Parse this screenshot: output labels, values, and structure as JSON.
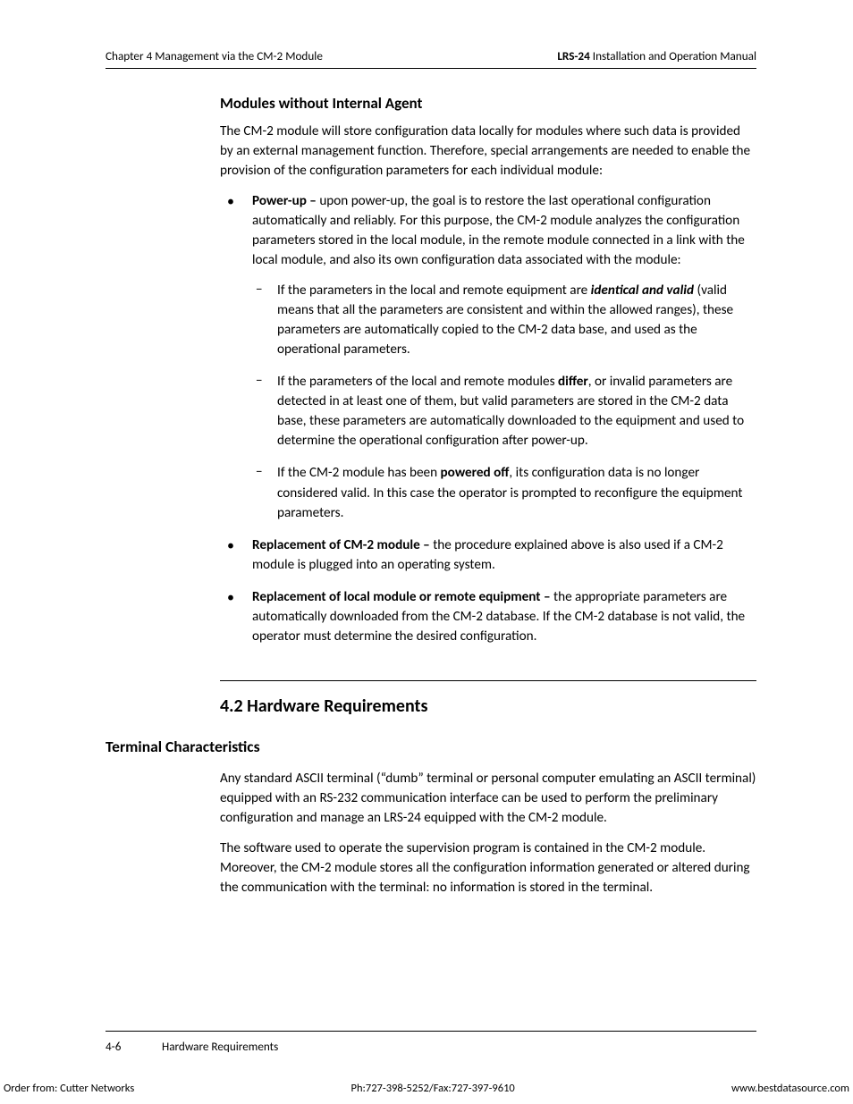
{
  "colors": {
    "text": "#000000",
    "background": "#ffffff",
    "rule": "#000000"
  },
  "typography": {
    "body_fontsize_pt": 11.4,
    "heading3_fontsize_pt": 12.8,
    "heading2_fontsize_pt": 15,
    "line_height": 1.45,
    "font_family": "Optima / humanist sans-serif"
  },
  "header": {
    "left": "Chapter 4  Management via the CM-2 Module",
    "right_bold": "LRS-24",
    "right_rest": " Installation and Operation Manual"
  },
  "section1": {
    "title": "Modules without Internal Agent",
    "intro": "The CM-2 module will store configuration data locally for modules where such data is provided by an external management function. Therefore, special arrangements are needed to enable the provision of the configuration parameters for each individual module:",
    "bullets": [
      {
        "lead": "Power-up – ",
        "text": "upon power-up, the goal is to restore the last operational configuration automatically and reliably. For this purpose, the CM-2 module analyzes the configuration parameters  stored in the local module, in the remote module connected in a link with the local module, and also its own configuration data associated with the module:",
        "sub": [
          {
            "pre": "If the parameters in the local and remote equipment are ",
            "em": "identical and valid",
            "post": " (valid means that all the parameters are consistent and within the allowed ranges), these parameters are automatically copied to the CM-2 data base, and used as the operational parameters."
          },
          {
            "pre": "If the parameters of the local and remote modules ",
            "em": "differ",
            "post": ", or invalid parameters are detected in at least one of them, but valid parameters are stored in the CM-2 data base, these parameters are automatically downloaded to the equipment and used to determine the operational configuration after power-up."
          },
          {
            "pre": "If the CM-2 module has been ",
            "em": "powered off",
            "post": ", its configuration data is no longer considered valid. In this case the operator is prompted to reconfigure the equipment parameters."
          }
        ]
      },
      {
        "lead": "Replacement of CM-2 module – ",
        "text": "the procedure explained above is also used if a CM-2 module is plugged into an operating system."
      },
      {
        "lead": "Replacement of local module or remote equipment – ",
        "text": "the appropriate parameters are automatically downloaded from the CM-2 database. If the CM-2 database is not valid, the operator must determine the desired configuration."
      }
    ]
  },
  "section2": {
    "number_title": "4.2  Hardware Requirements",
    "sidehead": "Terminal Characteristics",
    "para1": "Any standard ASCII terminal (“dumb” terminal or personal computer emulating an ASCII terminal) equipped with an RS-232 communication interface can be used to perform the preliminary configuration and manage an LRS-24 equipped with the CM-2 module.",
    "para2": "The software used to operate the supervision program is contained in the CM-2 module. Moreover, the CM-2 module stores all the configuration information generated or altered during the communication with the terminal: no information is stored in the terminal."
  },
  "footer": {
    "page": "4-6",
    "section": "Hardware Requirements"
  },
  "orderline": {
    "left": "Order from: Cutter Networks",
    "center": "Ph:727-398-5252/Fax:727-397-9610",
    "right": "www.bestdatasource.com"
  }
}
